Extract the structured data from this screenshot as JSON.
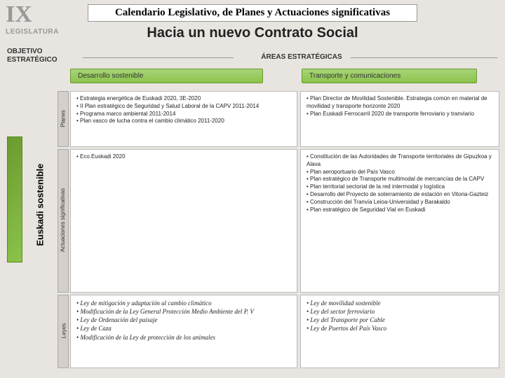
{
  "header": {
    "roman": "IX",
    "legislatura": "LEGISLATURA",
    "title": "Calendario Legislativo, de Planes y Actuaciones significativas",
    "subtitle": "Hacia un nuevo Contrato Social",
    "objetivo": "OBJETIVO\nESTRATÉGICO",
    "areas": "ÁREAS ESTRATÉGICAS"
  },
  "sidebar": {
    "main": "Euskadi sostenible",
    "row1": "Planes",
    "row2": "Actuaciones significativas",
    "row3": "Leyes"
  },
  "columns": {
    "c1": "Desarrollo sostenible",
    "c2": "Transporte y comunicaciones"
  },
  "cells": {
    "a1": "• Estrategia energética de Euskadi 2020, 3E-2020\n• II Plan estratégico de Seguridad y Salud Laboral de la CAPV 2011-2014\n• Programa marco ambiental 2011-2014\n• Plan vasco de lucha contra el cambio climático 2011-2020",
    "a2": "• Plan Director de Movilidad Sostenible. Estrategia común en material de movilidad y transporte horizonte 2020\n• Plan Euskadi Ferrocarril 2020 de transporte ferroviario y tranviario",
    "b1": "• Eco.Euskadi 2020",
    "b2": "• Constitución de las Autoridades de Transporte territoriales de Gipuzkoa y Alava\n• Plan aeroportuario del País Vasco\n• Plan estratégico de Transporte multimodal de mercancías de la CAPV\n• Plan territorial sectorial de la red intermodal y logística\n• Desarrollo del Proyecto de soterramiento de estación en Vitoria-Gazteiz\n• Construcción del Tranvía Leioa-Universidad y Barakaldo\n• Plan estratégico de Seguridad Vial en Euskadi",
    "c1": "• Ley de mitigación y adaptación al cambio climático\n• Modificación de la Ley General Protección Medio Ambiente del P. V\n• Ley de Ordenación del paisaje\n• Ley de Caza\n• Modificación de la Ley de protección de los animales",
    "c2": "• Ley de movilidad sostenible\n• Ley del sector ferroviario\n• Ley del Transporte por Cable\n• Ley de Puertos del País Vasco"
  },
  "colors": {
    "green_light": "#a8d47a",
    "green_dark": "#6a9b2e",
    "bg": "#e8e4e0"
  }
}
